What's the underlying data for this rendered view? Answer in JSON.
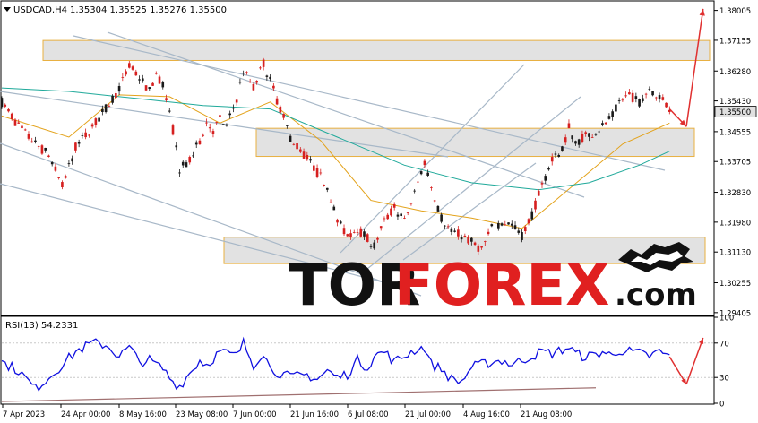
{
  "header": {
    "symbol": "USDCAD,H4",
    "ohlc": "1.35304 1.35525 1.35276 1.35500"
  },
  "rsi_label": "RSI(13) 54.2331",
  "watermark": {
    "part_a": "TOR",
    "part_b": "FOREX",
    "part_c": ".com"
  },
  "colors": {
    "candle_up": "#1a1a1a",
    "candle_down": "#d62020",
    "ma_fast": "#e3a21a",
    "ma_slow": "#1fa99a",
    "rsi_line": "#1010e0",
    "arrow": "#e03030",
    "zone_border": "#e8b040",
    "zone_fill": "#e2e2e2",
    "trendline": "#a8b8c8",
    "current_price_bg": "#e0e0e0"
  },
  "chart_data": [
    {
      "type": "candlestick",
      "symbol": "USDCAD",
      "timeframe": "H4",
      "y_ticks": [
        1.38005,
        1.37155,
        1.3628,
        1.3543,
        1.34555,
        1.33705,
        1.3283,
        1.3198,
        1.3113,
        1.30255,
        1.29405
      ],
      "y_tick_labels": [
        "1.38005",
        "1.37155",
        "1.36280",
        "1.35430",
        "1.34555",
        "1.33705",
        "1.32830",
        "1.31980",
        "1.31130",
        "1.30255",
        "1.29405"
      ],
      "current_price": "1.35500",
      "x_tick_labels": [
        "7 Apr 2023",
        "24 Apr 00:00",
        "8 May 16:00",
        "23 May 08:00",
        "7 Jun 00:00",
        "21 Jun 16:00",
        "6 Jul 08:00",
        "21 Jul 00:00",
        "4 Aug 16:00",
        "21 Aug 08:00"
      ],
      "ylim": [
        1.2935,
        1.3825
      ],
      "price_path": [
        [
          0,
          1.354
        ],
        [
          5,
          1.347
        ],
        [
          10,
          1.342
        ],
        [
          14,
          1.339
        ],
        [
          18,
          1.33
        ],
        [
          22,
          1.341
        ],
        [
          27,
          1.347
        ],
        [
          31,
          1.352
        ],
        [
          35,
          1.358
        ],
        [
          38,
          1.364
        ],
        [
          41,
          1.361
        ],
        [
          44,
          1.357
        ],
        [
          46,
          1.362
        ],
        [
          48,
          1.359
        ],
        [
          51,
          1.346
        ],
        [
          53,
          1.335
        ],
        [
          56,
          1.337
        ],
        [
          59,
          1.343
        ],
        [
          61,
          1.348
        ],
        [
          63,
          1.346
        ],
        [
          65,
          1.349
        ],
        [
          67,
          1.347
        ],
        [
          70,
          1.355
        ],
        [
          72,
          1.363
        ],
        [
          75,
          1.358
        ],
        [
          78,
          1.365
        ],
        [
          80,
          1.36
        ],
        [
          83,
          1.352
        ],
        [
          86,
          1.344
        ],
        [
          89,
          1.34
        ],
        [
          91,
          1.338
        ],
        [
          94,
          1.334
        ],
        [
          97,
          1.33
        ],
        [
          100,
          1.32
        ],
        [
          103,
          1.316
        ],
        [
          106,
          1.318
        ],
        [
          109,
          1.315
        ],
        [
          111,
          1.313
        ],
        [
          114,
          1.32
        ],
        [
          117,
          1.324
        ],
        [
          120,
          1.32
        ],
        [
          123,
          1.328
        ],
        [
          126,
          1.337
        ],
        [
          128,
          1.33
        ],
        [
          131,
          1.321
        ],
        [
          134,
          1.317
        ],
        [
          137,
          1.316
        ],
        [
          140,
          1.314
        ],
        [
          143,
          1.312
        ],
        [
          146,
          1.318
        ],
        [
          149,
          1.32
        ],
        [
          152,
          1.319
        ],
        [
          155,
          1.316
        ],
        [
          158,
          1.322
        ],
        [
          161,
          1.33
        ],
        [
          164,
          1.338
        ],
        [
          167,
          1.34
        ],
        [
          169,
          1.347
        ],
        [
          171,
          1.342
        ],
        [
          173,
          1.344
        ],
        [
          176,
          1.345
        ],
        [
          179,
          1.347
        ],
        [
          182,
          1.35
        ],
        [
          184,
          1.354
        ],
        [
          187,
          1.356
        ],
        [
          190,
          1.354
        ],
        [
          193,
          1.358
        ],
        [
          196,
          1.3555
        ],
        [
          199,
          1.352
        ]
      ],
      "moving_average_fast": [
        [
          0,
          1.35
        ],
        [
          20,
          1.344
        ],
        [
          35,
          1.356
        ],
        [
          50,
          1.3555
        ],
        [
          65,
          1.348
        ],
        [
          80,
          1.354
        ],
        [
          95,
          1.343
        ],
        [
          110,
          1.326
        ],
        [
          125,
          1.323
        ],
        [
          140,
          1.321
        ],
        [
          155,
          1.318
        ],
        [
          170,
          1.33
        ],
        [
          185,
          1.342
        ],
        [
          199,
          1.348
        ]
      ],
      "moving_average_slow": [
        [
          0,
          1.358
        ],
        [
          20,
          1.357
        ],
        [
          40,
          1.355
        ],
        [
          60,
          1.353
        ],
        [
          80,
          1.352
        ],
        [
          100,
          1.344
        ],
        [
          120,
          1.336
        ],
        [
          140,
          1.331
        ],
        [
          160,
          1.329
        ],
        [
          175,
          1.331
        ],
        [
          190,
          1.336
        ],
        [
          199,
          1.34
        ]
      ],
      "zones": [
        {
          "top": 1.3715,
          "bottom": 1.3658
        },
        {
          "top": 1.3465,
          "bottom": 1.3385
        },
        {
          "top": 1.3155,
          "bottom": 1.308
        }
      ],
      "forecast_arrows": [
        {
          "from": [
            199,
            1.352
          ],
          "to": [
            204,
            1.347
          ]
        },
        {
          "from": [
            204,
            1.347
          ],
          "to": [
            209,
            1.3805
          ]
        }
      ]
    },
    {
      "type": "line",
      "indicator": "RSI(13)",
      "last_value": "54.2331",
      "y_ticks": [
        0,
        30,
        70,
        100
      ],
      "y_tick_labels": [
        "0",
        "30",
        "70",
        "100"
      ],
      "ylim": [
        0,
        100
      ],
      "values_path": [
        [
          0,
          48
        ],
        [
          5,
          38
        ],
        [
          10,
          17
        ],
        [
          14,
          30
        ],
        [
          18,
          45
        ],
        [
          22,
          60
        ],
        [
          27,
          70
        ],
        [
          31,
          68
        ],
        [
          35,
          55
        ],
        [
          38,
          65
        ],
        [
          41,
          48
        ],
        [
          44,
          50
        ],
        [
          48,
          40
        ],
        [
          51,
          25
        ],
        [
          53,
          20
        ],
        [
          56,
          35
        ],
        [
          59,
          50
        ],
        [
          61,
          45
        ],
        [
          65,
          60
        ],
        [
          70,
          55
        ],
        [
          72,
          70
        ],
        [
          75,
          45
        ],
        [
          78,
          60
        ],
        [
          80,
          40
        ],
        [
          83,
          35
        ],
        [
          86,
          30
        ],
        [
          89,
          32
        ],
        [
          91,
          33
        ],
        [
          94,
          28
        ],
        [
          97,
          38
        ],
        [
          100,
          30
        ],
        [
          103,
          34
        ],
        [
          106,
          50
        ],
        [
          109,
          42
        ],
        [
          111,
          55
        ],
        [
          114,
          60
        ],
        [
          117,
          48
        ],
        [
          120,
          55
        ],
        [
          123,
          62
        ],
        [
          126,
          65
        ],
        [
          128,
          45
        ],
        [
          131,
          40
        ],
        [
          134,
          28
        ],
        [
          137,
          25
        ],
        [
          140,
          42
        ],
        [
          143,
          45
        ],
        [
          146,
          48
        ],
        [
          149,
          50
        ],
        [
          152,
          45
        ],
        [
          155,
          50
        ],
        [
          158,
          55
        ],
        [
          161,
          60
        ],
        [
          164,
          58
        ],
        [
          167,
          62
        ],
        [
          169,
          65
        ],
        [
          171,
          58
        ],
        [
          173,
          55
        ],
        [
          176,
          55
        ],
        [
          179,
          60
        ],
        [
          182,
          55
        ],
        [
          184,
          62
        ],
        [
          187,
          60
        ],
        [
          190,
          58
        ],
        [
          193,
          55
        ],
        [
          196,
          60
        ],
        [
          199,
          54
        ]
      ],
      "forecast_arrows": [
        {
          "from": [
            199,
            54
          ],
          "to": [
            204,
            22
          ]
        },
        {
          "from": [
            204,
            22
          ],
          "to": [
            209,
            76
          ]
        }
      ]
    }
  ]
}
